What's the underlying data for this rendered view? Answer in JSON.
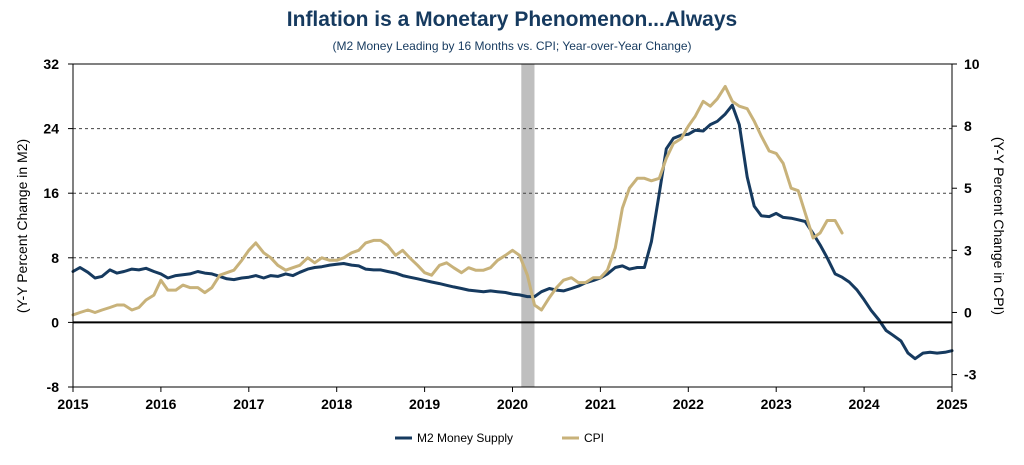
{
  "chart_data": {
    "type": "line",
    "title": "Inflation is a Monetary Phenomenon...Always",
    "subtitle": "(M2 Money Leading by 16 Months vs. CPI; Year-over-Year Change)",
    "ylabel": "(Y-Y Percent Change in M2)",
    "y2label": "(Y-Y Percent Change in CPI)",
    "xlim": [
      2015,
      2025
    ],
    "ylim": [
      -8,
      32
    ],
    "y2lim": [
      -3,
      10
    ],
    "x_ticks": [
      "2015",
      "2016",
      "2017",
      "2018",
      "2019",
      "2020",
      "2021",
      "2022",
      "2023",
      "2024",
      "2025"
    ],
    "y_ticks": [
      "32",
      "24",
      "16",
      "8",
      "0",
      "-8"
    ],
    "y2_ticks": [
      "10",
      "8",
      "5",
      "3",
      "0",
      "-3"
    ],
    "y_tick_values": [
      32,
      24,
      16,
      8,
      0,
      -8
    ],
    "y2_tick_values": [
      10,
      7.5,
      5,
      2.5,
      0,
      -2.5
    ],
    "gridlines": "dashed horizontal",
    "recession_shading": [
      2020.1,
      2020.25
    ],
    "legend": {
      "position": "bottom-center",
      "entries": [
        "M2 Money Supply",
        "CPI"
      ]
    },
    "colors": {
      "m2": "#163a5f",
      "cpi": "#c8b27a",
      "shade": "#bfbfbf",
      "title": "#163a5f"
    },
    "series": [
      {
        "name": "M2 Money Supply",
        "axis": "left",
        "x": [
          2015.0,
          2015.08,
          2015.17,
          2015.25,
          2015.33,
          2015.42,
          2015.5,
          2015.58,
          2015.67,
          2015.75,
          2015.83,
          2015.92,
          2016.0,
          2016.08,
          2016.17,
          2016.25,
          2016.33,
          2016.42,
          2016.5,
          2016.58,
          2016.67,
          2016.75,
          2016.83,
          2016.92,
          2017.0,
          2017.08,
          2017.17,
          2017.25,
          2017.33,
          2017.42,
          2017.5,
          2017.58,
          2017.67,
          2017.75,
          2017.83,
          2017.92,
          2018.0,
          2018.08,
          2018.17,
          2018.25,
          2018.33,
          2018.42,
          2018.5,
          2018.58,
          2018.67,
          2018.75,
          2018.83,
          2018.92,
          2019.0,
          2019.08,
          2019.17,
          2019.25,
          2019.33,
          2019.42,
          2019.5,
          2019.58,
          2019.67,
          2019.75,
          2019.83,
          2019.92,
          2020.0,
          2020.08,
          2020.17,
          2020.25,
          2020.33,
          2020.42,
          2020.5,
          2020.58,
          2020.67,
          2020.75,
          2020.83,
          2020.92,
          2021.0,
          2021.08,
          2021.17,
          2021.25,
          2021.33,
          2021.42,
          2021.5,
          2021.58,
          2021.67,
          2021.75,
          2021.83,
          2021.92,
          2022.0,
          2022.08,
          2022.17,
          2022.25,
          2022.33,
          2022.42,
          2022.5,
          2022.58,
          2022.67,
          2022.75,
          2022.83,
          2022.92,
          2023.0,
          2023.08,
          2023.17,
          2023.25,
          2023.33,
          2023.42,
          2023.5,
          2023.58,
          2023.67,
          2023.75,
          2023.83,
          2023.92,
          2024.0,
          2024.08,
          2024.17,
          2024.25,
          2024.33,
          2024.42,
          2024.5,
          2024.58,
          2024.67,
          2024.75,
          2024.83,
          2024.92,
          2025.0
        ],
        "values": [
          6.3,
          6.8,
          6.2,
          5.5,
          5.7,
          6.5,
          6.1,
          6.3,
          6.6,
          6.5,
          6.7,
          6.3,
          6.0,
          5.5,
          5.8,
          5.9,
          6.0,
          6.3,
          6.1,
          6.0,
          5.7,
          5.4,
          5.3,
          5.5,
          5.6,
          5.8,
          5.5,
          5.8,
          5.7,
          6.0,
          5.8,
          6.2,
          6.6,
          6.8,
          6.9,
          7.1,
          7.2,
          7.3,
          7.1,
          7.0,
          6.6,
          6.5,
          6.5,
          6.3,
          6.1,
          5.8,
          5.6,
          5.4,
          5.2,
          5.0,
          4.8,
          4.6,
          4.4,
          4.2,
          4.0,
          3.9,
          3.8,
          3.9,
          3.8,
          3.7,
          3.5,
          3.4,
          3.2,
          3.2,
          3.8,
          4.2,
          4.0,
          3.9,
          4.2,
          4.5,
          4.9,
          5.2,
          5.5,
          6.0,
          6.8,
          7.0,
          6.6,
          6.8,
          6.8,
          10.0,
          16.0,
          21.5,
          22.8,
          23.2,
          23.3,
          23.8,
          23.7,
          24.5,
          24.9,
          25.8,
          26.9,
          24.5,
          18.0,
          14.4,
          13.2,
          13.1,
          13.5,
          13.0,
          12.9,
          12.7,
          12.5,
          11.0,
          9.6,
          8.0,
          6.0,
          5.6,
          5.0,
          4.0,
          2.8,
          1.5,
          0.3,
          -1.0,
          -1.6,
          -2.3,
          -3.8,
          -4.5,
          -3.8,
          -3.7,
          -3.8,
          -3.7,
          -3.5
        ]
      },
      {
        "name": "CPI",
        "axis": "right",
        "x": [
          2015.0,
          2015.08,
          2015.17,
          2015.25,
          2015.33,
          2015.42,
          2015.5,
          2015.58,
          2015.67,
          2015.75,
          2015.83,
          2015.92,
          2016.0,
          2016.08,
          2016.17,
          2016.25,
          2016.33,
          2016.42,
          2016.5,
          2016.58,
          2016.67,
          2016.75,
          2016.83,
          2016.92,
          2017.0,
          2017.08,
          2017.17,
          2017.25,
          2017.33,
          2017.42,
          2017.5,
          2017.58,
          2017.67,
          2017.75,
          2017.83,
          2017.92,
          2018.0,
          2018.08,
          2018.17,
          2018.25,
          2018.33,
          2018.42,
          2018.5,
          2018.58,
          2018.67,
          2018.75,
          2018.83,
          2018.92,
          2019.0,
          2019.08,
          2019.17,
          2019.25,
          2019.33,
          2019.42,
          2019.5,
          2019.58,
          2019.67,
          2019.75,
          2019.83,
          2019.92,
          2020.0,
          2020.08,
          2020.17,
          2020.25,
          2020.33,
          2020.42,
          2020.5,
          2020.58,
          2020.67,
          2020.75,
          2020.83,
          2020.92,
          2021.0,
          2021.08,
          2021.17,
          2021.25,
          2021.33,
          2021.42,
          2021.5,
          2021.58,
          2021.67,
          2021.75,
          2021.83,
          2021.92,
          2022.0,
          2022.08,
          2022.17,
          2022.25,
          2022.33,
          2022.42,
          2022.5,
          2022.58,
          2022.67,
          2022.75,
          2022.83,
          2022.92,
          2023.0,
          2023.08,
          2023.17,
          2023.25,
          2023.33,
          2023.42,
          2023.5,
          2023.58,
          2023.67,
          2023.75
        ],
        "values": [
          -0.1,
          0.0,
          0.1,
          0.0,
          0.1,
          0.2,
          0.3,
          0.3,
          0.1,
          0.2,
          0.5,
          0.7,
          1.3,
          0.9,
          0.9,
          1.1,
          1.0,
          1.0,
          0.8,
          1.0,
          1.5,
          1.6,
          1.7,
          2.1,
          2.5,
          2.8,
          2.4,
          2.2,
          1.9,
          1.7,
          1.8,
          1.9,
          2.2,
          2.0,
          2.2,
          2.1,
          2.1,
          2.2,
          2.4,
          2.5,
          2.8,
          2.9,
          2.9,
          2.7,
          2.3,
          2.5,
          2.2,
          1.9,
          1.6,
          1.5,
          1.9,
          2.0,
          1.8,
          1.6,
          1.8,
          1.7,
          1.7,
          1.8,
          2.1,
          2.3,
          2.5,
          2.3,
          1.5,
          0.3,
          0.1,
          0.6,
          1.0,
          1.3,
          1.4,
          1.2,
          1.2,
          1.4,
          1.4,
          1.7,
          2.6,
          4.2,
          5.0,
          5.4,
          5.4,
          5.3,
          5.4,
          6.2,
          6.8,
          7.0,
          7.5,
          7.9,
          8.5,
          8.3,
          8.6,
          9.1,
          8.5,
          8.3,
          8.2,
          7.7,
          7.1,
          6.5,
          6.4,
          6.0,
          5.0,
          4.9,
          4.0,
          3.0,
          3.2,
          3.7,
          3.7,
          3.2
        ]
      }
    ]
  }
}
